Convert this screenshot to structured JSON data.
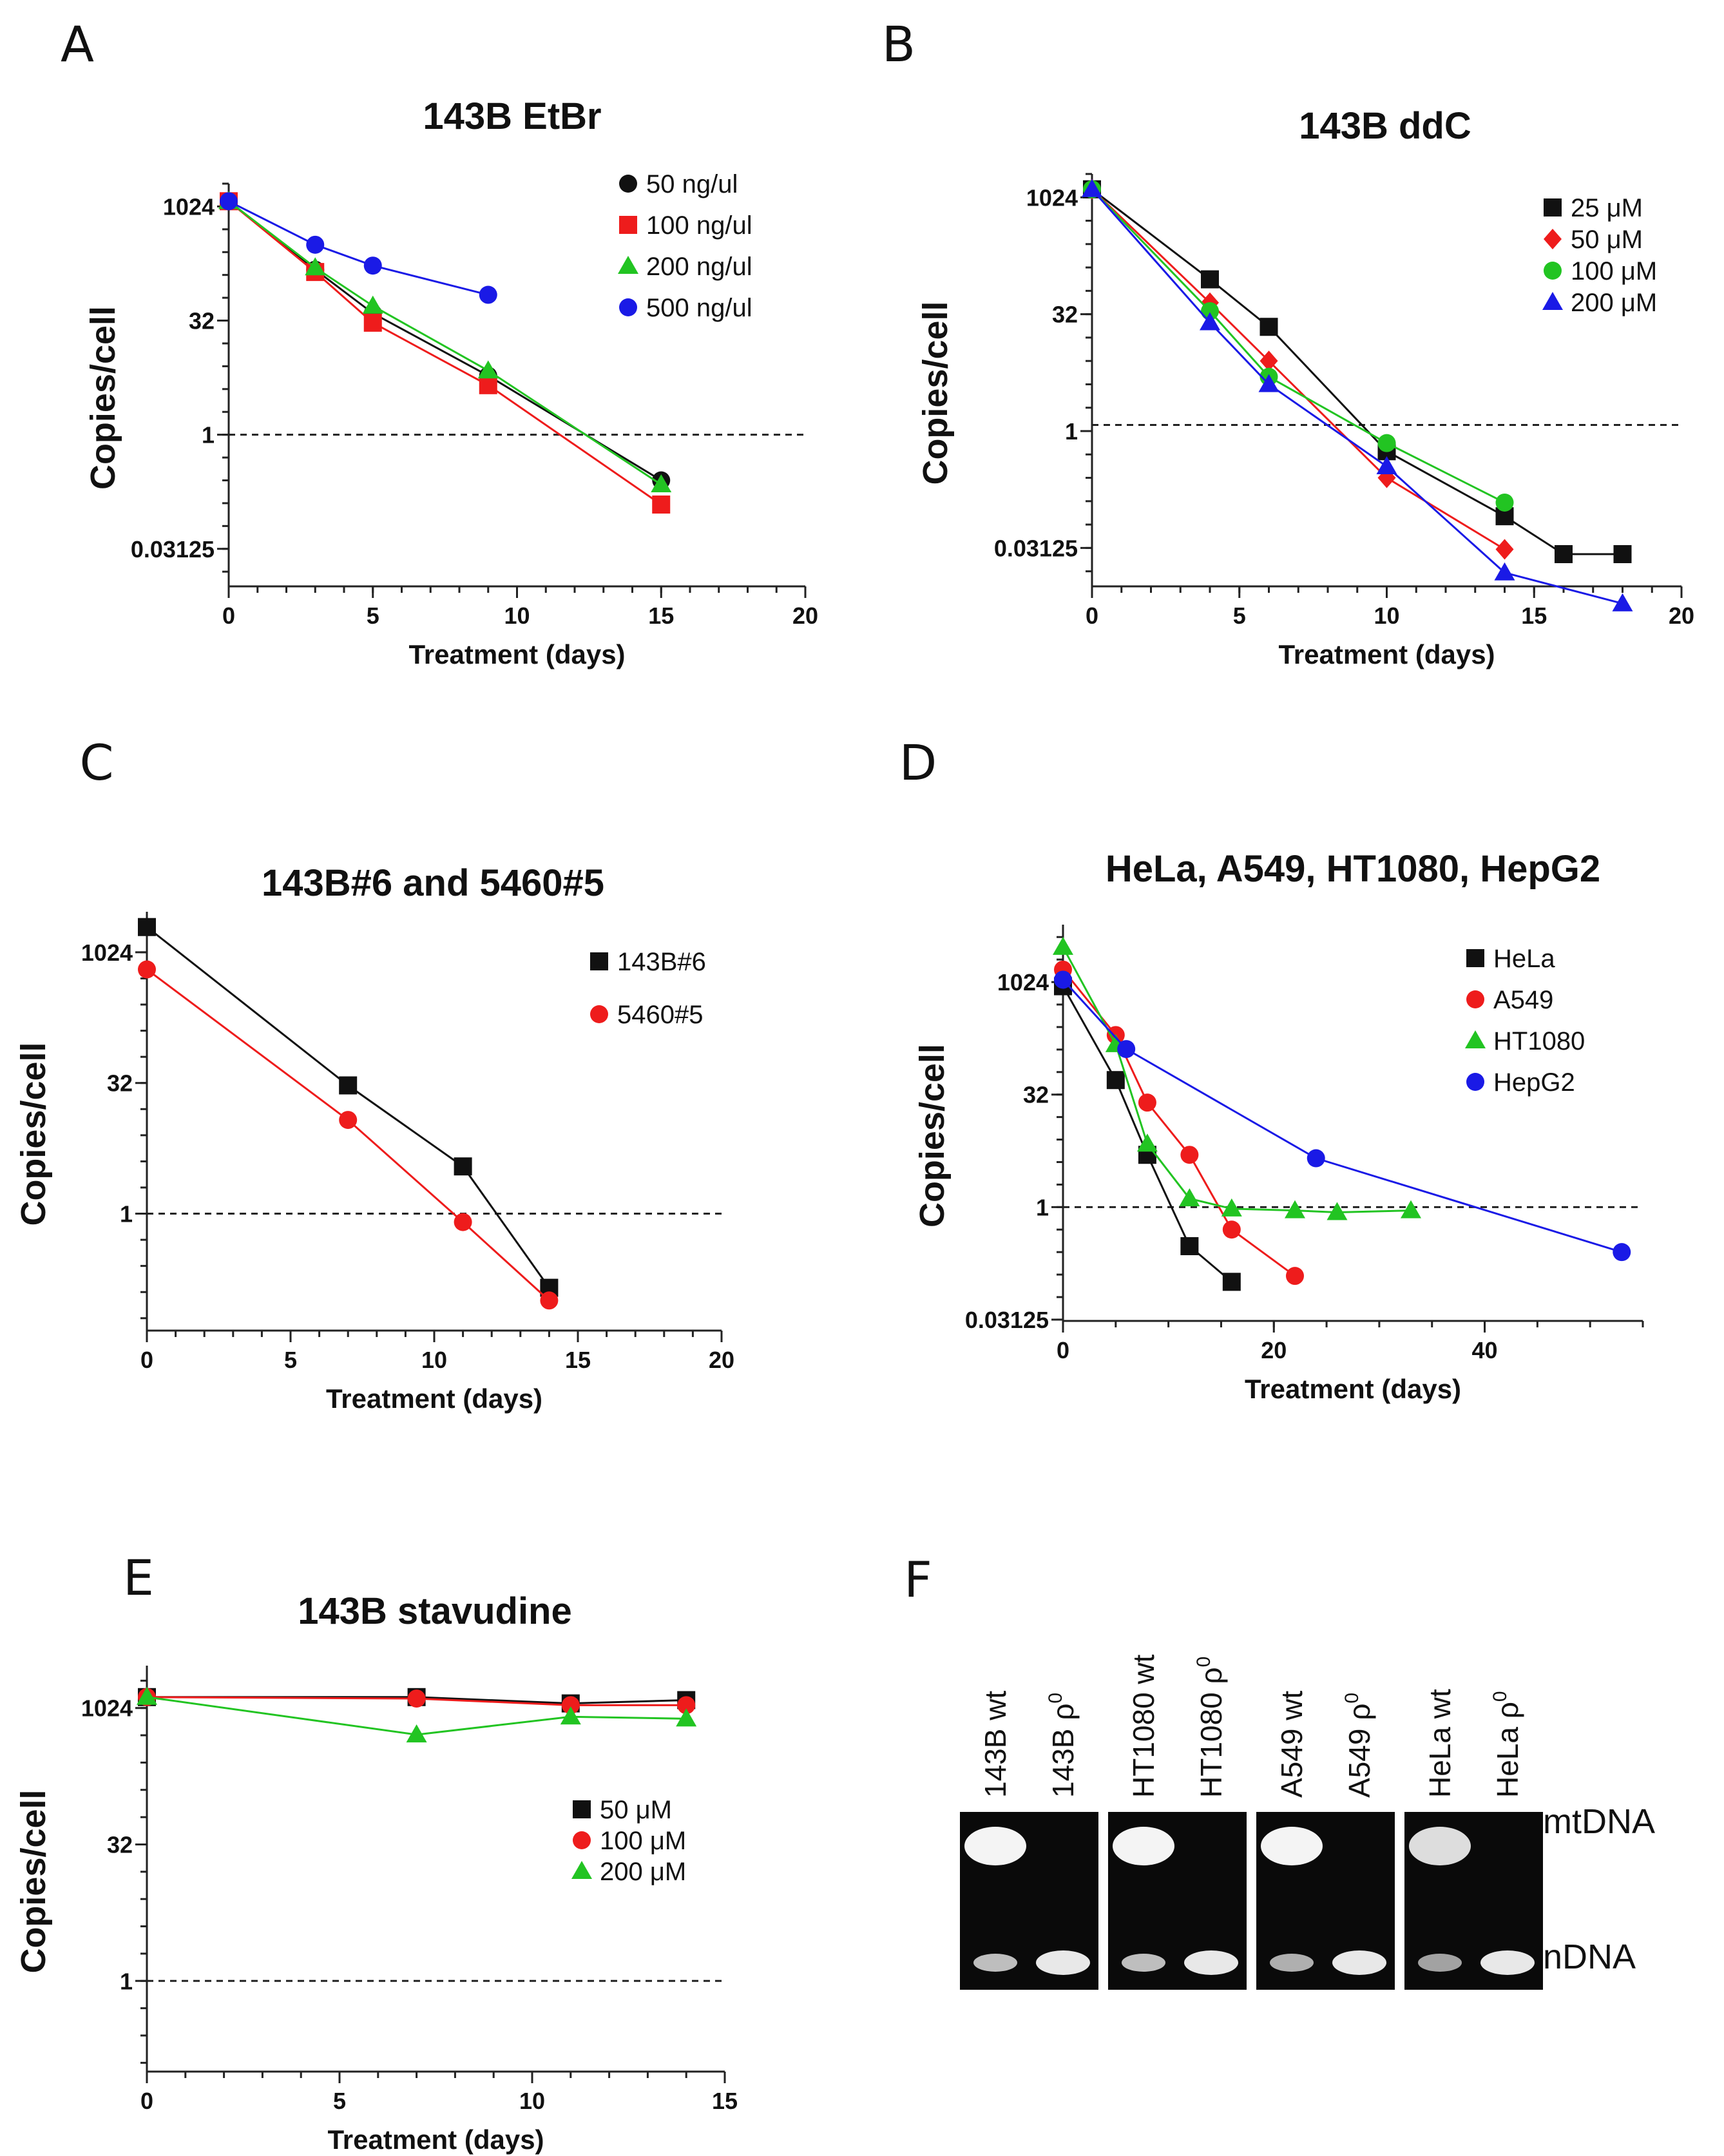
{
  "colors": {
    "black": "#111111",
    "red": "#ee1c1c",
    "green": "#22c422",
    "blue": "#1a1ae6",
    "gel_bg": "#0a0a0a",
    "band": "#f4f4f4"
  },
  "chart_data": [
    {
      "id": "A",
      "type": "scatter",
      "title": "143B EtBr",
      "xlabel": "Treatment (days)",
      "ylabel": "Copies/cell",
      "xlim": [
        0,
        20
      ],
      "xticks": [
        0,
        5,
        10,
        15,
        20
      ],
      "yscale": "log2",
      "ylim": [
        0.01,
        2048
      ],
      "yticks": [
        1024,
        32,
        1,
        0.03125
      ],
      "ytick_labels": [
        "1024",
        "32",
        "1",
        "0.03125"
      ],
      "reference_line": 1,
      "legend_position": "top-right",
      "series": [
        {
          "name": "50 ng/ul",
          "color": "black",
          "marker": "circle",
          "x": [
            0,
            3,
            5,
            9,
            15
          ],
          "y": [
            1200,
            150,
            40,
            6,
            0.25
          ]
        },
        {
          "name": "100 ng/ul",
          "color": "red",
          "marker": "square",
          "x": [
            0,
            3,
            5,
            9,
            15
          ],
          "y": [
            1200,
            140,
            30,
            4.5,
            0.12
          ]
        },
        {
          "name": "200 ng/ul",
          "color": "green",
          "marker": "triangle",
          "x": [
            0,
            3,
            5,
            9,
            15
          ],
          "y": [
            1200,
            160,
            50,
            7,
            0.22
          ]
        },
        {
          "name": "500 ng/ul",
          "color": "blue",
          "marker": "circle",
          "x": [
            0,
            3,
            5,
            9
          ],
          "y": [
            1200,
            320,
            170,
            70
          ]
        }
      ]
    },
    {
      "id": "B",
      "type": "scatter",
      "title": "143B ddC",
      "xlabel": "Treatment (days)",
      "ylabel": "Copies/cell",
      "xlim": [
        0,
        20
      ],
      "xticks": [
        0,
        5,
        10,
        15,
        20
      ],
      "yscale": "log2",
      "ylim": [
        0.01,
        2048
      ],
      "yticks": [
        1024,
        32,
        1,
        0.03125
      ],
      "ytick_labels": [
        "1024",
        "32",
        "1",
        "0.03125"
      ],
      "reference_line": 1.2,
      "legend_position": "top-right",
      "series": [
        {
          "name": "25 μM",
          "color": "black",
          "marker": "square",
          "x": [
            0,
            4,
            6,
            10,
            14,
            16,
            18
          ],
          "y": [
            1300,
            90,
            22,
            0.55,
            0.08,
            0.026,
            0.026
          ]
        },
        {
          "name": "50 μM",
          "color": "red",
          "marker": "diamond",
          "x": [
            0,
            4,
            6,
            10,
            14
          ],
          "y": [
            1300,
            45,
            8,
            0.25,
            0.03
          ]
        },
        {
          "name": "100 μM",
          "color": "green",
          "marker": "circle",
          "x": [
            0,
            4,
            6,
            10,
            14
          ],
          "y": [
            1300,
            35,
            5,
            0.7,
            0.12
          ]
        },
        {
          "name": "200 μM",
          "color": "blue",
          "marker": "triangle",
          "x": [
            0,
            4,
            6,
            10,
            14,
            18
          ],
          "y": [
            1300,
            25,
            4,
            0.35,
            0.015,
            0.006
          ]
        }
      ]
    },
    {
      "id": "C",
      "type": "scatter",
      "title": "143B#6  and 5460#5",
      "xlabel": "Treatment (days)",
      "ylabel": "Copies/cell",
      "xlim": [
        0,
        20
      ],
      "xticks": [
        0,
        5,
        10,
        15,
        20
      ],
      "yscale": "log2",
      "ylim": [
        0.045,
        3000
      ],
      "yticks": [
        1024,
        32,
        1
      ],
      "ytick_labels": [
        "1024",
        "32",
        "1"
      ],
      "reference_line": 1,
      "legend_position": "top-right",
      "series": [
        {
          "name": "143B#6",
          "color": "black",
          "marker": "square",
          "x": [
            0,
            7,
            11,
            14
          ],
          "y": [
            2000,
            30,
            3.5,
            0.14
          ]
        },
        {
          "name": "5460#5",
          "color": "red",
          "marker": "circle",
          "x": [
            0,
            7,
            11,
            14
          ],
          "y": [
            650,
            12,
            0.8,
            0.1
          ]
        }
      ]
    },
    {
      "id": "D",
      "type": "scatter",
      "title": "HeLa, A549, HT1080, HepG2",
      "xlabel": "Treatment (days)",
      "ylabel": "Copies/cell",
      "xlim": [
        0,
        55
      ],
      "xticks": [
        0,
        20,
        40
      ],
      "yscale": "log2",
      "ylim": [
        0.03,
        6000
      ],
      "yticks": [
        1024,
        32,
        1,
        0.03125
      ],
      "ytick_labels": [
        "1024",
        "32",
        "1",
        "0.03125"
      ],
      "reference_line": 1,
      "legend_position": "top-right",
      "series": [
        {
          "name": "HeLa",
          "color": "black",
          "marker": "square",
          "x": [
            0,
            5,
            8,
            12,
            16
          ],
          "y": [
            900,
            50,
            5,
            0.3,
            0.1
          ]
        },
        {
          "name": "A549",
          "color": "red",
          "marker": "circle",
          "x": [
            0,
            5,
            8,
            12,
            16,
            22
          ],
          "y": [
            1500,
            200,
            25,
            5,
            0.5,
            0.12
          ]
        },
        {
          "name": "HT1080",
          "color": "green",
          "marker": "triangle",
          "x": [
            0,
            5,
            8,
            12,
            16,
            22,
            26,
            33
          ],
          "y": [
            3000,
            150,
            7,
            1.3,
            0.95,
            0.9,
            0.85,
            0.9
          ]
        },
        {
          "name": "HepG2",
          "color": "blue",
          "marker": "circle",
          "x": [
            0,
            6,
            24,
            53
          ],
          "y": [
            1100,
            130,
            4.5,
            0.25
          ]
        }
      ]
    },
    {
      "id": "E",
      "type": "scatter",
      "title": "143B stavudine",
      "xlabel": "Treatment (days)",
      "ylabel": "Copies/cell",
      "xlim": [
        0,
        15
      ],
      "xticks": [
        0,
        5,
        10,
        15
      ],
      "yscale": "log2",
      "ylim": [
        0.1,
        3000
      ],
      "yticks": [
        1024,
        32,
        1
      ],
      "ytick_labels": [
        "1024",
        "32",
        "1"
      ],
      "reference_line": 1,
      "legend_position": "center-right",
      "series": [
        {
          "name": "50 μM",
          "color": "black",
          "marker": "square",
          "x": [
            0,
            7,
            11,
            14
          ],
          "y": [
            1350,
            1350,
            1150,
            1250
          ]
        },
        {
          "name": "100 μM",
          "color": "red",
          "marker": "circle",
          "x": [
            0,
            7,
            11,
            14
          ],
          "y": [
            1350,
            1300,
            1100,
            1100
          ]
        },
        {
          "name": "200 μM",
          "color": "green",
          "marker": "triangle",
          "x": [
            0,
            7,
            11,
            14
          ],
          "y": [
            1350,
            520,
            820,
            780
          ]
        }
      ]
    }
  ],
  "gel": {
    "letter": "F",
    "band_labels": {
      "top": "mtDNA",
      "bottom": "nDNA"
    },
    "groups": [
      {
        "lanes": [
          {
            "label": "143B wt",
            "mt": 1.0,
            "n": 0.7
          },
          {
            "label": "143B ρ0",
            "mt": 0.0,
            "n": 1.0
          }
        ]
      },
      {
        "lanes": [
          {
            "label": "HT1080 wt",
            "mt": 1.0,
            "n": 0.7
          },
          {
            "label": "HT1080 ρ0",
            "mt": 0.0,
            "n": 1.0
          }
        ]
      },
      {
        "lanes": [
          {
            "label": "A549 wt",
            "mt": 1.0,
            "n": 0.6
          },
          {
            "label": "A549 ρ0",
            "mt": 0.0,
            "n": 1.0
          }
        ]
      },
      {
        "lanes": [
          {
            "label": "HeLa wt",
            "mt": 0.9,
            "n": 0.5
          },
          {
            "label": "HeLa ρ0",
            "mt": 0.0,
            "n": 1.0
          }
        ]
      }
    ]
  }
}
